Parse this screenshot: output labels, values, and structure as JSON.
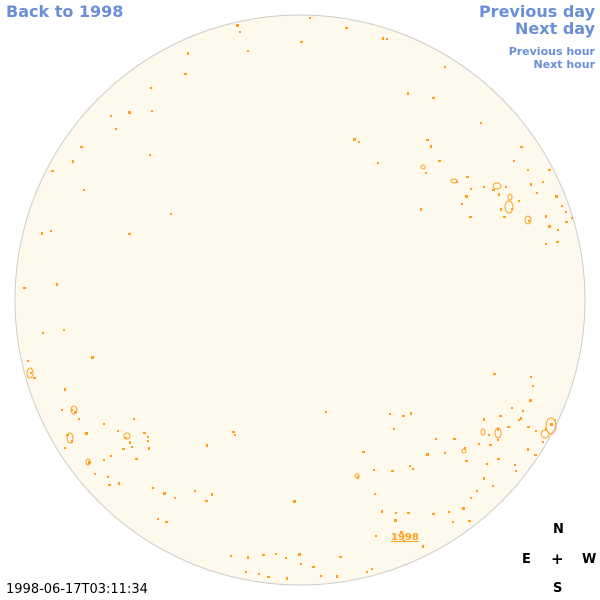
{
  "navigation": {
    "back_label": "Back to 1998",
    "previous_day_label": "Previous day",
    "next_day_label": "Next day",
    "previous_hour_label": "Previous hour",
    "next_hour_label": "Next hour"
  },
  "disk": {
    "fill_color": "#fdf9ec",
    "outline_color": "#cccccc",
    "feature_color": "#ff9f1c",
    "year_label": "1998"
  },
  "timestamp": "1998-06-17T03:11:34",
  "compass": {
    "north": "N",
    "east": "E",
    "west": "W",
    "south": "S",
    "center": "+"
  },
  "colors": {
    "link": "#6a8fd8",
    "text": "#000000",
    "background": "#ffffff"
  }
}
